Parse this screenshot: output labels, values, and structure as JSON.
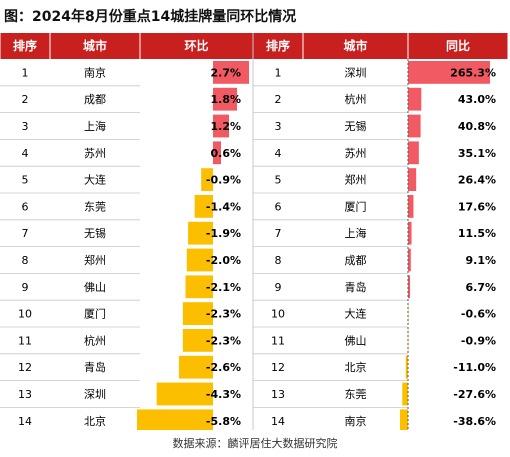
{
  "title": "图：2024年8月份重点14城挂牌量同环比情况",
  "source": "数据来源：麟评居住大数据研究院",
  "colors": {
    "header_bg": "#c8201f",
    "header_text": "#ffffff",
    "positive_bar": "#f25a63",
    "negative_bar": "#fbbf00",
    "border": "#c8c8c8",
    "text": "#000000"
  },
  "headers": {
    "left": [
      "排序",
      "城市",
      "环比"
    ],
    "right": [
      "排序",
      "城市",
      "同比"
    ]
  },
  "chart_data": [
    {
      "type": "table",
      "metric": "环比",
      "ranks": [
        "1",
        "2",
        "3",
        "4",
        "5",
        "6",
        "7",
        "8",
        "9",
        "10",
        "11",
        "12",
        "13",
        "14"
      ],
      "categories": [
        "南京",
        "成都",
        "上海",
        "苏州",
        "大连",
        "东莞",
        "无锡",
        "郑州",
        "佛山",
        "厦门",
        "杭州",
        "青岛",
        "深圳",
        "北京"
      ],
      "values": [
        2.7,
        1.8,
        1.2,
        0.6,
        -0.9,
        -1.4,
        -1.9,
        -2.0,
        -2.1,
        -2.3,
        -2.3,
        -2.6,
        -4.3,
        -5.8
      ],
      "labels": [
        "2.7%",
        "1.8%",
        "1.2%",
        "0.6%",
        "-0.9%",
        "-1.4%",
        "-1.9%",
        "-2.0%",
        "-2.1%",
        "-2.3%",
        "-2.3%",
        "-2.6%",
        "-4.3%",
        "-5.8%"
      ]
    },
    {
      "type": "table",
      "metric": "同比",
      "ranks": [
        "1",
        "2",
        "3",
        "4",
        "5",
        "6",
        "7",
        "8",
        "9",
        "10",
        "11",
        "12",
        "13",
        "14"
      ],
      "categories": [
        "深圳",
        "杭州",
        "无锡",
        "苏州",
        "郑州",
        "厦门",
        "上海",
        "成都",
        "青岛",
        "大连",
        "佛山",
        "北京",
        "东莞",
        "南京"
      ],
      "values": [
        265.3,
        43.0,
        40.8,
        35.1,
        26.4,
        17.6,
        11.5,
        9.1,
        6.7,
        -0.6,
        -0.9,
        -11.0,
        -27.6,
        -38.6
      ],
      "labels": [
        "265.3%",
        "43.0%",
        "40.8%",
        "35.1%",
        "26.4%",
        "17.6%",
        "11.5%",
        "9.1%",
        "6.7%",
        "-0.6%",
        "-0.9%",
        "-11.0%",
        "-27.6%",
        "-38.6%"
      ]
    }
  ]
}
